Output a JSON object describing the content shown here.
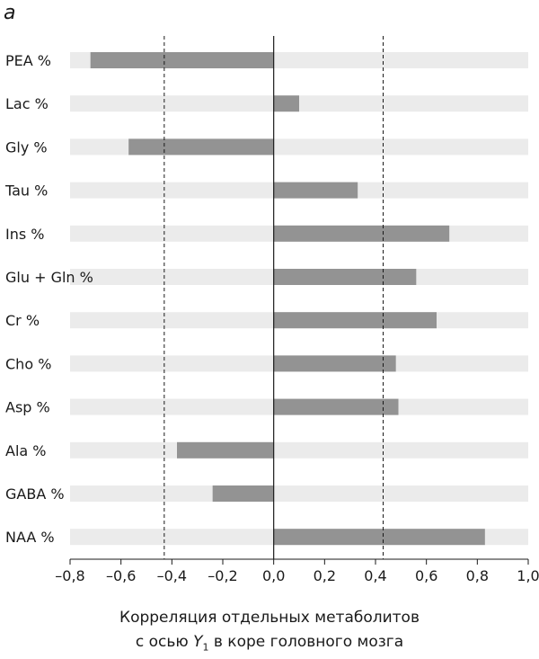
{
  "panel_label": "а",
  "chart_data": {
    "type": "bar",
    "orientation": "horizontal",
    "categories": [
      "PEA %",
      "Lac %",
      "Gly %",
      "Tau %",
      "Ins %",
      "Glu + Gln %",
      "Cr %",
      "Cho %",
      "Asp %",
      "Ala %",
      "GABA %",
      "NAA %"
    ],
    "values": [
      -0.72,
      0.1,
      -0.57,
      0.33,
      0.69,
      0.56,
      0.64,
      0.48,
      0.49,
      -0.38,
      -0.24,
      0.83
    ],
    "xlim": [
      -0.8,
      1.0
    ],
    "xticks": [
      -0.8,
      -0.6,
      -0.4,
      -0.2,
      0.0,
      0.2,
      0.4,
      0.6,
      0.8,
      1.0
    ],
    "xtick_labels": [
      "–0,8",
      "–0,6",
      "–0,4",
      "–0,2",
      "0,0",
      "0,2",
      "0,4",
      "0,6",
      "0,8",
      "1,0"
    ],
    "reference_lines": [
      -0.43,
      0.43
    ],
    "xlabel_line1": "Корреляция отдельных метаболитов",
    "xlabel_line2_pre": "с осью ",
    "xlabel_var": "Y",
    "xlabel_sub": "1",
    "xlabel_line2_post": " в коре головного мозга",
    "bar_color": "#939393",
    "track_color": "#ebebeb"
  }
}
